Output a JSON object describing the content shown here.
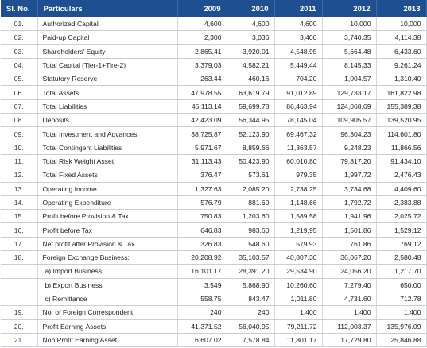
{
  "table": {
    "header": [
      "Sl. No.",
      "Particulars",
      "2009",
      "2010",
      "2011",
      "2012",
      "2013"
    ],
    "rows": [
      {
        "no": "01.",
        "label": "Authorized Capital",
        "values": [
          "4,600",
          "4,600",
          "4,600",
          "10,000",
          "10,000"
        ]
      },
      {
        "no": "02.",
        "label": "Paid-up Capital",
        "values": [
          "2,300",
          "3,036",
          "3,400",
          "3,740.35",
          "4,114.38"
        ]
      },
      {
        "no": "03.",
        "label": "Shareholders' Equity",
        "values": [
          "2,865.41",
          "3,920.01",
          "4,548.95",
          "5,664.48",
          "6,433.60"
        ]
      },
      {
        "no": "04.",
        "label": "Total Capital (Tier-1+Tire-2)",
        "values": [
          "3,379.03",
          "4,582.21",
          "5,449.44",
          "8,145.33",
          "9,261.24"
        ]
      },
      {
        "no": "05.",
        "label": "Statutory Reserve",
        "values": [
          "263.44",
          "460.16",
          "704.20",
          "1,004.57",
          "1,310.40"
        ]
      },
      {
        "no": "06.",
        "label": "Total Assets",
        "values": [
          "47,978.55",
          "63,619.79",
          "91,012.89",
          "129,733.17",
          "161,822.98"
        ]
      },
      {
        "no": "07.",
        "label": "Total Liabilities",
        "values": [
          "45,113.14",
          "59,699.78",
          "86,463.94",
          "124,068.69",
          "155,389.38"
        ]
      },
      {
        "no": "08.",
        "label": "Deposits",
        "values": [
          "42,423.09",
          "56,344.95",
          "78,145.04",
          "109,905.57",
          "139,520.95"
        ]
      },
      {
        "no": "09.",
        "label": "Total Investment and Advances",
        "values": [
          "38,725.87",
          "52,123.90",
          "69,467.32",
          "96,304.23",
          "114,601.80"
        ]
      },
      {
        "no": "10.",
        "label": "Total Contingent Liabilities",
        "values": [
          "5,971.67",
          "8,859.66",
          "11,363.57",
          "9,248.23",
          "11,866.56"
        ]
      },
      {
        "no": "11.",
        "label": "Total Risk Weight Asset",
        "values": [
          "31,113.43",
          "50,423.90",
          "60,010.80",
          "79,817.20",
          "91,434.10"
        ]
      },
      {
        "no": "12.",
        "label": "Total Fixed Assets",
        "values": [
          "376.47",
          "573.61",
          "979.35",
          "1,997.72",
          "2,476.43"
        ]
      },
      {
        "no": "13.",
        "label": "Operating Income",
        "values": [
          "1,327.63",
          "2,085.20",
          "2,738.25",
          "3,734.68",
          "4,409.60"
        ]
      },
      {
        "no": "14.",
        "label": "Operating Expenditure",
        "values": [
          "576.79",
          "881.60",
          "1,148.66",
          "1,792.72",
          "2,383.88"
        ]
      },
      {
        "no": "15.",
        "label": "Profit before Provision & Tax",
        "values": [
          "750.83",
          "1,203.60",
          "1,589.58",
          "1,941.96",
          "2,025.72"
        ]
      },
      {
        "no": "16.",
        "label": "Profit before Tax",
        "values": [
          "646.83",
          "983.60",
          "1,219.95",
          "1,501.86",
          "1,529.12"
        ]
      },
      {
        "no": "17.",
        "label": "Net profit after Provision & Tax",
        "values": [
          "326.83",
          "548.60",
          "579.93",
          "761.86",
          "769.12"
        ]
      },
      {
        "no": "18.",
        "label": "Foreign Exchange Business:",
        "values": [
          "20,208.92",
          "35,103.57",
          "40,807.30",
          "36,067.20",
          "2,580.48"
        ]
      },
      {
        "label": "a) Import Business",
        "values": [
          "16,101.17",
          "28,391.20",
          "29,534.90",
          "24,056.20",
          "1,217.70"
        ]
      },
      {
        "label": "b) Export Business",
        "values": [
          "3,549",
          "5,868.90",
          "10,260.60",
          "7,279.40",
          "650.00"
        ]
      },
      {
        "label": "c) Remittance",
        "values": [
          "558.75",
          "843.47",
          "1,011.80",
          "4,731.60",
          "712.78"
        ]
      },
      {
        "no": "19.",
        "label": "No. of Foreign Correspondent",
        "values": [
          "240",
          "240",
          "1,400",
          "1,400",
          "1,400"
        ]
      },
      {
        "no": "20.",
        "label": "Profit Earning Assets",
        "values": [
          "41,371.52",
          "56,040.95",
          "79,211.72",
          "112,003.37",
          "135,976.09"
        ]
      },
      {
        "no": "21.",
        "label": "Non Profit Earning Asset",
        "values": [
          "6,607.02",
          "7,578.84",
          "11,801.17",
          "17,729.80",
          "25,846.88"
        ]
      }
    ]
  }
}
